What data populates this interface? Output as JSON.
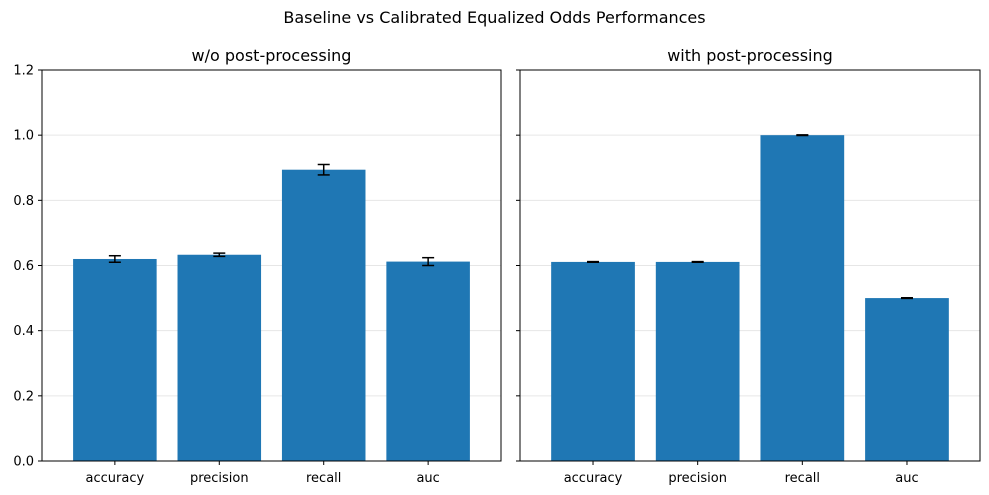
{
  "figure": {
    "suptitle": "Baseline vs Calibrated Equalized Odds Performances"
  },
  "chart_data": [
    {
      "type": "bar",
      "title": "w/o post-processing",
      "categories": [
        "accuracy",
        "precision",
        "recall",
        "auc"
      ],
      "values": [
        0.62,
        0.633,
        0.894,
        0.612
      ],
      "errors": [
        0.01,
        0.005,
        0.016,
        0.012
      ],
      "ylim": [
        0,
        1.2
      ],
      "yticks": [
        "0.0",
        "0.2",
        "0.4",
        "0.6",
        "0.8",
        "1.0",
        "1.2"
      ],
      "grid": "y",
      "bar_color": "#1f77b4"
    },
    {
      "type": "bar",
      "title": "with post-processing",
      "categories": [
        "accuracy",
        "precision",
        "recall",
        "auc"
      ],
      "values": [
        0.611,
        0.611,
        1.0,
        0.5
      ],
      "errors": [
        0.001,
        0.001,
        0.001,
        0.001
      ],
      "ylim": [
        0,
        1.2
      ],
      "yticks": [
        "0.0",
        "0.2",
        "0.4",
        "0.6",
        "0.8",
        "1.0",
        "1.2"
      ],
      "grid": "y",
      "bar_color": "#1f77b4"
    }
  ]
}
